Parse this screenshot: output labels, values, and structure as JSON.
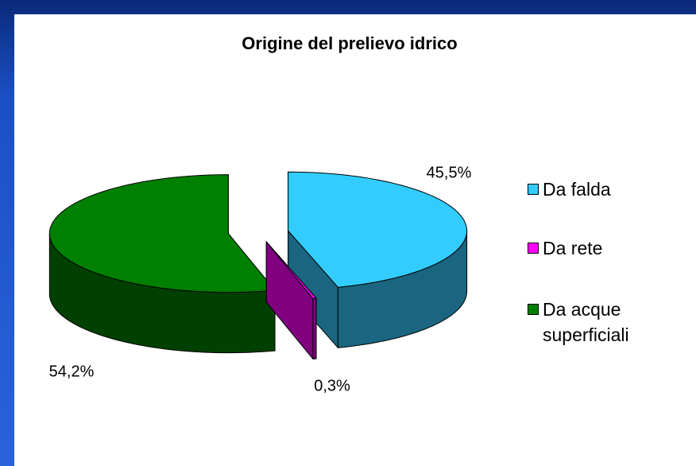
{
  "chart_data": {
    "type": "pie",
    "title": "Origine del prelievo idrico",
    "categories": [
      "Da falda",
      "Da rete",
      "Da acque superficiali"
    ],
    "values": [
      45.5,
      0.3,
      54.2
    ],
    "value_labels": [
      "45,5%",
      "0,3%",
      "54,2%"
    ],
    "colors": [
      "#33ccff",
      "#ff00ff",
      "#008000"
    ],
    "legend": "right"
  }
}
